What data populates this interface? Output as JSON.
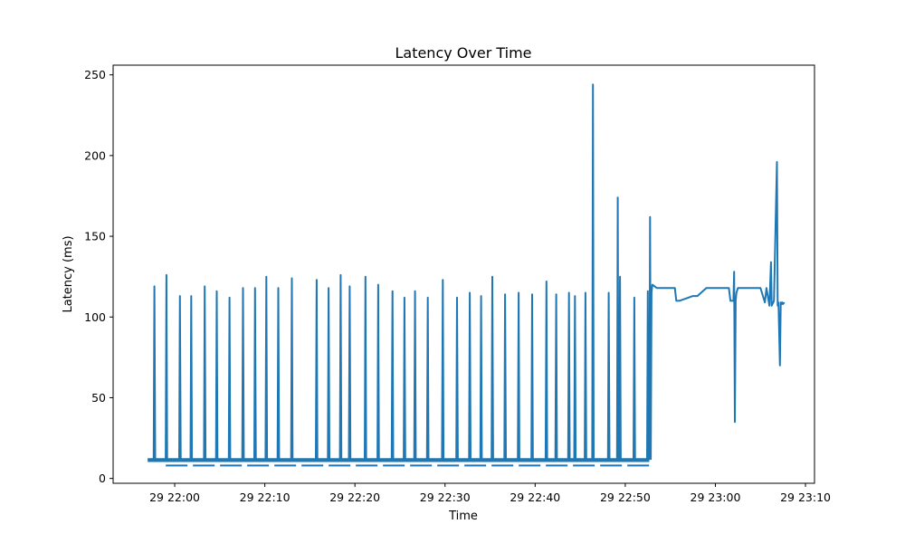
{
  "chart_data": {
    "type": "line",
    "title": "Latency Over Time",
    "xlabel": "Time",
    "ylabel": "Latency (ms)",
    "grid": false,
    "line_color": "#1f77b4",
    "xlim": [
      "29 21:53:10",
      "29 23:11:00"
    ],
    "ylim": [
      -3,
      256
    ],
    "x_ticks": [
      "29 22:00",
      "29 22:10",
      "29 22:20",
      "29 22:30",
      "29 22:40",
      "29 22:50",
      "29 23:00",
      "29 23:10"
    ],
    "y_ticks": [
      0,
      50,
      100,
      150,
      200,
      250
    ],
    "baseline": {
      "segments": [
        {
          "start": "29 21:57:00",
          "end": "29 22:52:40",
          "value": 11
        }
      ],
      "low_band_value": 8
    },
    "series": [
      {
        "x": [
          "29 21:57:00",
          "29 21:57:40",
          "29 21:57:45",
          "29 21:57:50",
          "29 21:58:30",
          "29 21:59:00",
          "29 21:59:05",
          "29 21:59:10",
          "29 22:00:30",
          "29 22:00:35",
          "29 22:00:40",
          "29 22:01:45",
          "29 22:01:50",
          "29 22:01:55",
          "29 22:03:15",
          "29 22:03:20",
          "29 22:03:25",
          "29 22:04:35",
          "29 22:04:40",
          "29 22:04:45",
          "29 22:06:00",
          "29 22:06:05",
          "29 22:06:10",
          "29 22:07:30",
          "29 22:07:35",
          "29 22:07:40",
          "29 22:08:50",
          "29 22:08:55",
          "29 22:09:00",
          "29 22:10:05",
          "29 22:10:10",
          "29 22:10:15",
          "29 22:11:25",
          "29 22:11:30",
          "29 22:11:35",
          "29 22:12:55",
          "29 22:13:00",
          "29 22:13:05",
          "29 22:15:40",
          "29 22:15:45",
          "29 22:15:50",
          "29 22:17:00",
          "29 22:17:05",
          "29 22:17:10",
          "29 22:18:20",
          "29 22:18:25",
          "29 22:18:30",
          "29 22:19:20",
          "29 22:19:25",
          "29 22:19:30",
          "29 22:21:05",
          "29 22:21:10",
          "29 22:21:15",
          "29 22:22:30",
          "29 22:22:35",
          "29 22:22:40",
          "29 22:24:05",
          "29 22:24:10",
          "29 22:24:15",
          "29 22:25:25",
          "29 22:25:30",
          "29 22:25:35",
          "29 22:26:35",
          "29 22:26:40",
          "29 22:26:45",
          "29 22:28:00",
          "29 22:28:05",
          "29 22:28:10",
          "29 22:29:40",
          "29 22:29:45",
          "29 22:29:50",
          "29 22:31:15",
          "29 22:31:20",
          "29 22:31:25",
          "29 22:32:40",
          "29 22:32:45",
          "29 22:32:50",
          "29 22:33:55",
          "29 22:34:00",
          "29 22:34:05",
          "29 22:35:10",
          "29 22:35:15",
          "29 22:35:20",
          "29 22:36:35",
          "29 22:36:40",
          "29 22:36:45",
          "29 22:38:05",
          "29 22:38:10",
          "29 22:38:15",
          "29 22:39:35",
          "29 22:39:40",
          "29 22:39:45",
          "29 22:41:10",
          "29 22:41:15",
          "29 22:41:20",
          "29 22:42:15",
          "29 22:42:20",
          "29 22:42:25",
          "29 22:43:40",
          "29 22:43:45",
          "29 22:43:50",
          "29 22:44:20",
          "29 22:44:25",
          "29 22:44:30",
          "29 22:45:30",
          "29 22:45:35",
          "29 22:45:40",
          "29 22:46:20",
          "29 22:46:25",
          "29 22:46:30",
          "29 22:48:05",
          "29 22:48:10",
          "29 22:48:15",
          "29 22:49:05",
          "29 22:49:10",
          "29 22:49:15",
          "29 22:49:20",
          "29 22:49:25",
          "29 22:49:30",
          "29 22:50:55",
          "29 22:51:00",
          "29 22:51:05",
          "29 22:52:25",
          "29 22:52:30",
          "29 22:52:35",
          "29 22:52:40",
          "29 22:52:45",
          "29 22:52:50",
          "29 22:52:55",
          "29 22:53:00",
          "29 22:53:30",
          "29 22:54:00",
          "29 22:55:30",
          "29 22:55:40",
          "29 22:56:00",
          "29 22:57:30",
          "29 22:58:00",
          "29 22:59:00",
          "29 23:00:00",
          "29 23:01:00",
          "29 23:01:30",
          "29 23:01:40",
          "29 23:02:00",
          "29 23:02:05",
          "29 23:02:10",
          "29 23:02:15",
          "29 23:02:20",
          "29 23:02:30",
          "29 23:03:00",
          "29 23:04:00",
          "29 23:05:00",
          "29 23:05:30",
          "29 23:05:40",
          "29 23:06:00",
          "29 23:06:10",
          "29 23:06:15",
          "29 23:06:30",
          "29 23:06:50",
          "29 23:06:55",
          "29 23:07:00",
          "29 23:07:10",
          "29 23:07:15",
          "29 23:07:20",
          "29 23:07:25",
          "29 23:07:30",
          "29 23:07:40"
        ],
        "values": [
          12,
          12,
          119,
          12,
          12,
          12,
          126,
          12,
          12,
          113,
          12,
          12,
          113,
          12,
          12,
          119,
          12,
          12,
          116,
          12,
          12,
          112,
          12,
          12,
          118,
          12,
          12,
          118,
          12,
          12,
          125,
          12,
          12,
          118,
          12,
          12,
          124,
          12,
          12,
          123,
          12,
          12,
          118,
          12,
          12,
          126,
          12,
          12,
          119,
          12,
          12,
          125,
          12,
          12,
          120,
          12,
          12,
          116,
          12,
          12,
          112,
          12,
          12,
          116,
          12,
          12,
          112,
          12,
          12,
          123,
          12,
          12,
          112,
          12,
          12,
          115,
          12,
          12,
          113,
          12,
          12,
          125,
          12,
          12,
          114,
          12,
          12,
          115,
          12,
          12,
          114,
          12,
          12,
          122,
          12,
          12,
          114,
          12,
          12,
          115,
          12,
          12,
          113,
          12,
          12,
          115,
          12,
          12,
          244,
          12,
          12,
          115,
          12,
          12,
          174,
          12,
          12,
          125,
          12,
          12,
          112,
          12,
          12,
          116,
          12,
          12,
          162,
          12,
          115,
          120,
          118,
          118,
          118,
          110,
          110,
          113,
          113,
          118,
          118,
          118,
          118,
          110,
          110,
          128,
          35,
          110,
          115,
          118,
          118,
          118,
          118,
          109,
          118,
          107,
          134,
          107,
          110,
          196,
          107,
          109,
          70,
          109,
          108,
          109,
          108,
          109
        ]
      }
    ]
  }
}
